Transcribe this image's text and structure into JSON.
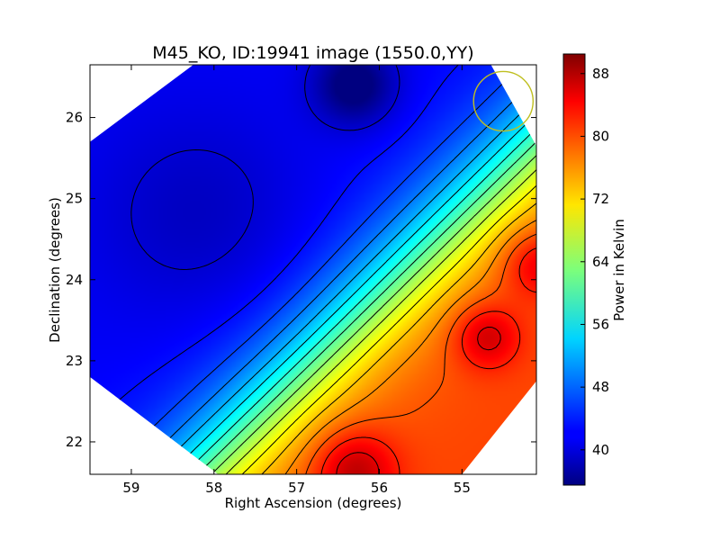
{
  "chart_data": {
    "type": "heatmap",
    "title": "M45_KO, ID:19941 image (1550.0,YY)",
    "xlabel": "Right Ascension (degrees)",
    "ylabel": "Declination (degrees)",
    "colorbar_label": "Power in Kelvin",
    "xlim": [
      59.5,
      54.1
    ],
    "ylim": [
      21.6,
      26.65
    ],
    "x_ticks": [
      59,
      58,
      57,
      56,
      55
    ],
    "y_ticks": [
      22,
      23,
      24,
      25,
      26
    ],
    "colorbar_range": [
      35.5,
      90.5
    ],
    "colorbar_ticks": [
      40,
      48,
      56,
      64,
      72,
      80,
      88
    ],
    "colormap": "jet",
    "contour_levels": [
      40,
      43,
      46,
      49,
      52,
      55,
      58,
      61,
      64,
      67,
      70,
      73,
      76,
      79,
      82,
      85,
      88
    ],
    "beam_marker": {
      "ra": 54.5,
      "dec": 26.2,
      "radius_deg": 0.36,
      "color": "#bfbf20"
    },
    "footprint_polygon": [
      [
        58.25,
        26.65
      ],
      [
        54.65,
        26.65
      ],
      [
        54.1,
        25.65
      ],
      [
        54.1,
        22.75
      ],
      [
        55.0,
        21.6
      ],
      [
        57.95,
        21.6
      ],
      [
        59.5,
        22.8
      ],
      [
        59.5,
        25.7
      ]
    ],
    "features": [
      {
        "name": "minimum-north",
        "ra": 56.3,
        "dec": 26.4,
        "value": 36
      },
      {
        "name": "minimum-west",
        "ra": 58.2,
        "dec": 24.8,
        "value": 41
      },
      {
        "name": "maximum-east",
        "ra": 54.7,
        "dec": 23.3,
        "value": 89
      },
      {
        "name": "maximum-south",
        "ra": 56.3,
        "dec": 21.65,
        "value": 90
      },
      {
        "name": "local-bump-east",
        "ra": 54.1,
        "dec": 24.2,
        "value": 70
      }
    ]
  }
}
